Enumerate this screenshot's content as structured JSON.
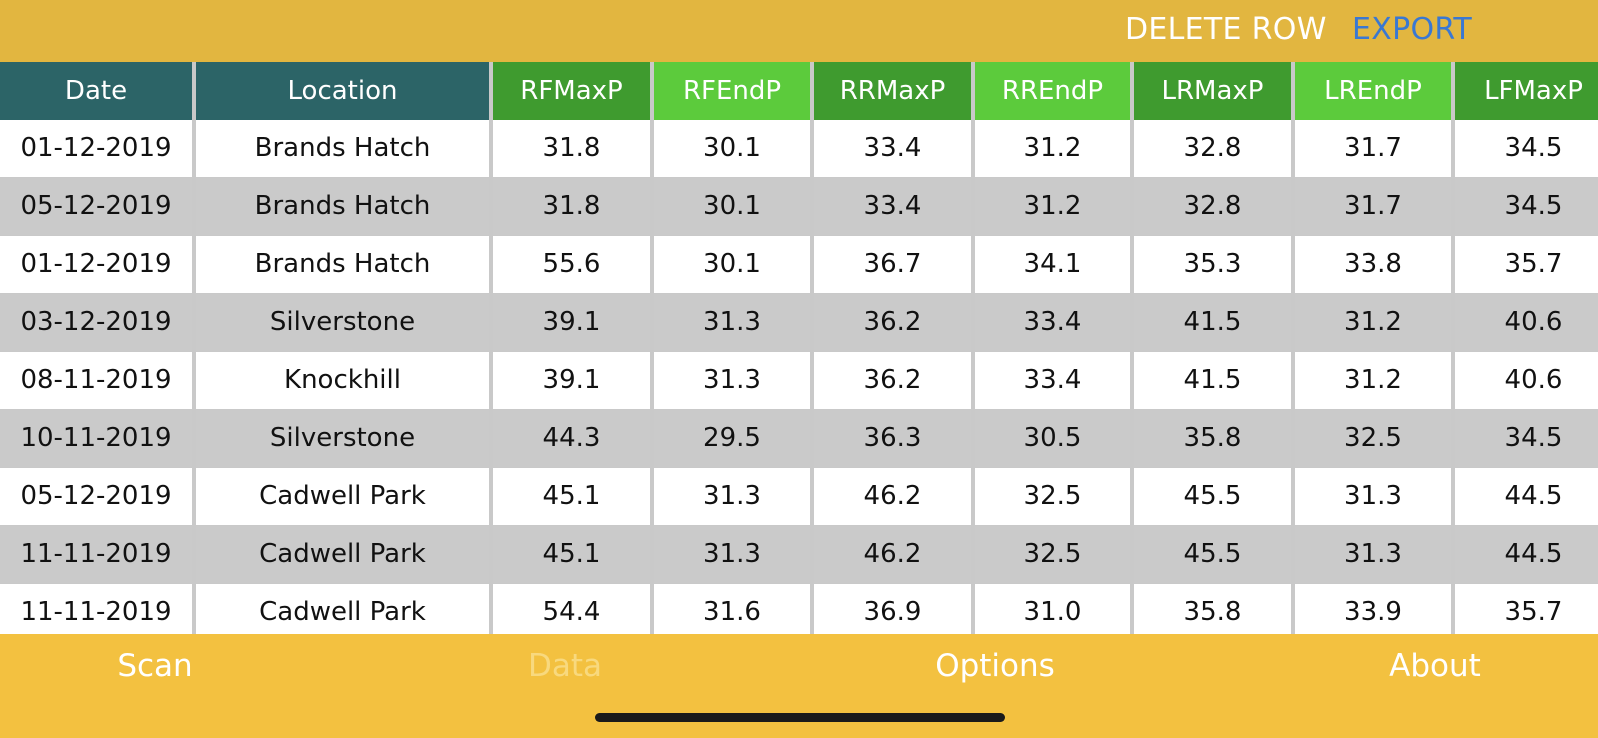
{
  "toolbar": {
    "delete_label": "DELETE ROW",
    "export_label": "EXPORT"
  },
  "table": {
    "columns": [
      "Date",
      "Location",
      "RFMaxP",
      "RFEndP",
      "RRMaxP",
      "RREndP",
      "LRMaxP",
      "LREndP",
      "LFMaxP"
    ],
    "rows": [
      [
        "01-12-2019",
        "Brands Hatch",
        "31.8",
        "30.1",
        "33.4",
        "31.2",
        "32.8",
        "31.7",
        "34.5"
      ],
      [
        "05-12-2019",
        "Brands Hatch",
        "31.8",
        "30.1",
        "33.4",
        "31.2",
        "32.8",
        "31.7",
        "34.5"
      ],
      [
        "01-12-2019",
        "Brands Hatch",
        "55.6",
        "30.1",
        "36.7",
        "34.1",
        "35.3",
        "33.8",
        "35.7"
      ],
      [
        "03-12-2019",
        "Silverstone",
        "39.1",
        "31.3",
        "36.2",
        "33.4",
        "41.5",
        "31.2",
        "40.6"
      ],
      [
        "08-11-2019",
        "Knockhill",
        "39.1",
        "31.3",
        "36.2",
        "33.4",
        "41.5",
        "31.2",
        "40.6"
      ],
      [
        "10-11-2019",
        "Silverstone",
        "44.3",
        "29.5",
        "36.3",
        "30.5",
        "35.8",
        "32.5",
        "34.5"
      ],
      [
        "05-12-2019",
        "Cadwell Park",
        "45.1",
        "31.3",
        "46.2",
        "32.5",
        "45.5",
        "31.3",
        "44.5"
      ],
      [
        "11-11-2019",
        "Cadwell Park",
        "45.1",
        "31.3",
        "46.2",
        "32.5",
        "45.5",
        "31.3",
        "44.5"
      ],
      [
        "11-11-2019",
        "Cadwell Park",
        "54.4",
        "31.6",
        "36.9",
        "31.0",
        "35.8",
        "33.9",
        "35.7"
      ]
    ]
  },
  "tabs": {
    "scan": "Scan",
    "data": "Data",
    "options": "Options",
    "about": "About",
    "active": "Data"
  },
  "colors": {
    "top_bar": "#E2B640",
    "tab_bar": "#F3C140",
    "header_teal": "#2C6467",
    "header_dark_green": "#3F9B2F",
    "header_light_green": "#5CCB3C",
    "export_blue": "#3A78D2",
    "row_alt": "#CACACA"
  }
}
